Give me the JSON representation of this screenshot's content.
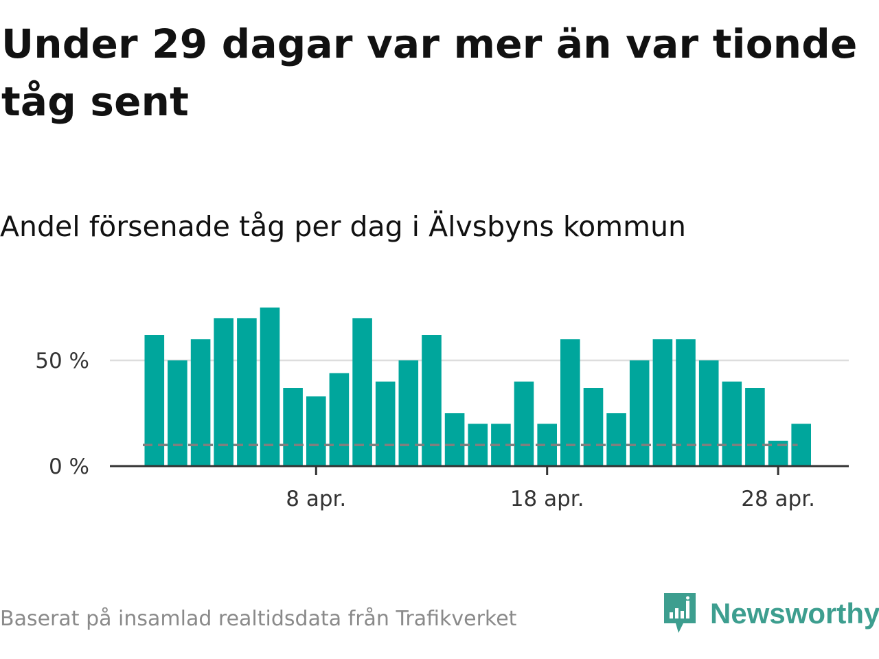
{
  "title": "Under 29 dagar var mer än var tionde tåg sent",
  "subtitle": "Andel försenade tåg per dag i Älvsbyns kommun",
  "source": "Baserat på insamlad realtidsdata från Trafikverket",
  "brand": {
    "name": "Newsworthy",
    "icon": "newsworthy-logo-icon"
  },
  "colors": {
    "bar": "#00a69c",
    "reference": "#7f7f7f",
    "grid": "#dddddd",
    "axis": "#333333"
  },
  "chart_data": {
    "type": "bar",
    "x": [
      "2021-04-01",
      "2021-04-02",
      "2021-04-03",
      "2021-04-04",
      "2021-04-05",
      "2021-04-06",
      "2021-04-07",
      "2021-04-08",
      "2021-04-09",
      "2021-04-10",
      "2021-04-11",
      "2021-04-12",
      "2021-04-13",
      "2021-04-14",
      "2021-04-15",
      "2021-04-16",
      "2021-04-17",
      "2021-04-18",
      "2021-04-19",
      "2021-04-20",
      "2021-04-21",
      "2021-04-22",
      "2021-04-23",
      "2021-04-24",
      "2021-04-25",
      "2021-04-26",
      "2021-04-27",
      "2021-04-28",
      "2021-04-29"
    ],
    "values": [
      62,
      50,
      60,
      70,
      70,
      75,
      37,
      33,
      44,
      70,
      40,
      50,
      62,
      25,
      20,
      20,
      40,
      20,
      60,
      37,
      25,
      50,
      60,
      60,
      50,
      40,
      37,
      12,
      20
    ],
    "reference_line": 10,
    "ylim": [
      0,
      80
    ],
    "yticks": [
      {
        "value": 0,
        "label": "0 %"
      },
      {
        "value": 50,
        "label": "50 %"
      }
    ],
    "xticks": [
      {
        "x": "2021-04-08",
        "label": "8 apr."
      },
      {
        "x": "2021-04-18",
        "label": "18 apr."
      },
      {
        "x": "2021-04-28",
        "label": "28 apr."
      }
    ],
    "grid": true,
    "legend": "none",
    "xlabel": "",
    "ylabel": ""
  }
}
